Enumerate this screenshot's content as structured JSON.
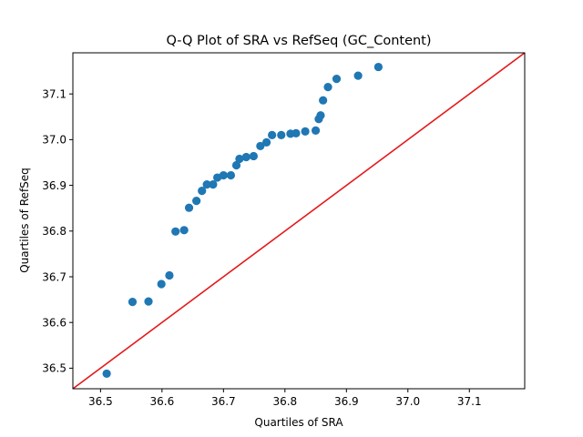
{
  "chart_data": {
    "type": "scatter",
    "title": "Q-Q Plot of SRA vs RefSeq (GC_Content)",
    "xlabel": "Quartiles of SRA",
    "ylabel": "Quartiles of RefSeq",
    "xlim": [
      36.455,
      37.19
    ],
    "ylim": [
      36.455,
      37.19
    ],
    "xticks": [
      "36.5",
      "36.6",
      "36.7",
      "36.8",
      "36.9",
      "37.0",
      "37.1"
    ],
    "yticks": [
      "36.5",
      "36.6",
      "36.7",
      "36.8",
      "36.9",
      "37.0",
      "37.1"
    ],
    "grid": false,
    "reference_line": {
      "color": "#e41a1c",
      "from": [
        36.455,
        36.455
      ],
      "to": [
        37.19,
        37.19
      ]
    },
    "series": [
      {
        "color": "#1f77b4",
        "points": [
          [
            36.51,
            36.488
          ],
          [
            36.552,
            36.645
          ],
          [
            36.578,
            36.646
          ],
          [
            36.599,
            36.684
          ],
          [
            36.612,
            36.703
          ],
          [
            36.622,
            36.799
          ],
          [
            36.636,
            36.802
          ],
          [
            36.644,
            36.851
          ],
          [
            36.656,
            36.866
          ],
          [
            36.665,
            36.888
          ],
          [
            36.673,
            36.902
          ],
          [
            36.683,
            36.902
          ],
          [
            36.69,
            36.917
          ],
          [
            36.7,
            36.922
          ],
          [
            36.712,
            36.922
          ],
          [
            36.721,
            36.944
          ],
          [
            36.726,
            36.958
          ],
          [
            36.737,
            36.962
          ],
          [
            36.749,
            36.964
          ],
          [
            36.76,
            36.986
          ],
          [
            36.77,
            36.994
          ],
          [
            36.779,
            37.01
          ],
          [
            36.794,
            37.01
          ],
          [
            36.809,
            37.013
          ],
          [
            36.818,
            37.014
          ],
          [
            36.833,
            37.018
          ],
          [
            36.85,
            37.02
          ],
          [
            36.855,
            37.045
          ],
          [
            36.858,
            37.053
          ],
          [
            36.862,
            37.086
          ],
          [
            36.87,
            37.115
          ],
          [
            36.884,
            37.133
          ],
          [
            36.919,
            37.14
          ],
          [
            36.952,
            37.159
          ]
        ]
      }
    ]
  }
}
